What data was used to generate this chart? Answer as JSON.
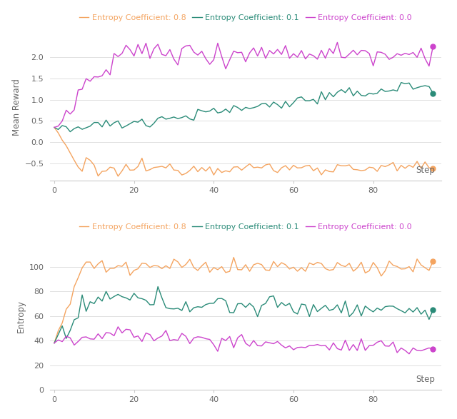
{
  "ylabel1": "Mean Reward",
  "ylabel2": "Entropy",
  "xlabel": "Step",
  "legend_labels": [
    "Entropy Coefficient: 0.8",
    "Entropy Coefficient: 0.1",
    "Entropy Coefficient: 0.0"
  ],
  "colors": [
    "#f4a460",
    "#2a8b78",
    "#cc44cc"
  ],
  "bg_color": "#ffffff",
  "grid_color": "#e0e0e0",
  "reward_ylim": [
    -0.9,
    2.55
  ],
  "reward_yticks": [
    -0.5,
    0.0,
    0.5,
    1.0,
    1.5,
    2.0
  ],
  "entropy_ylim": [
    0,
    120
  ],
  "entropy_yticks": [
    0,
    20,
    40,
    60,
    80,
    100
  ],
  "xticks": [
    0,
    20,
    40,
    60,
    80
  ],
  "linewidth": 1.0,
  "marker_size": 5
}
